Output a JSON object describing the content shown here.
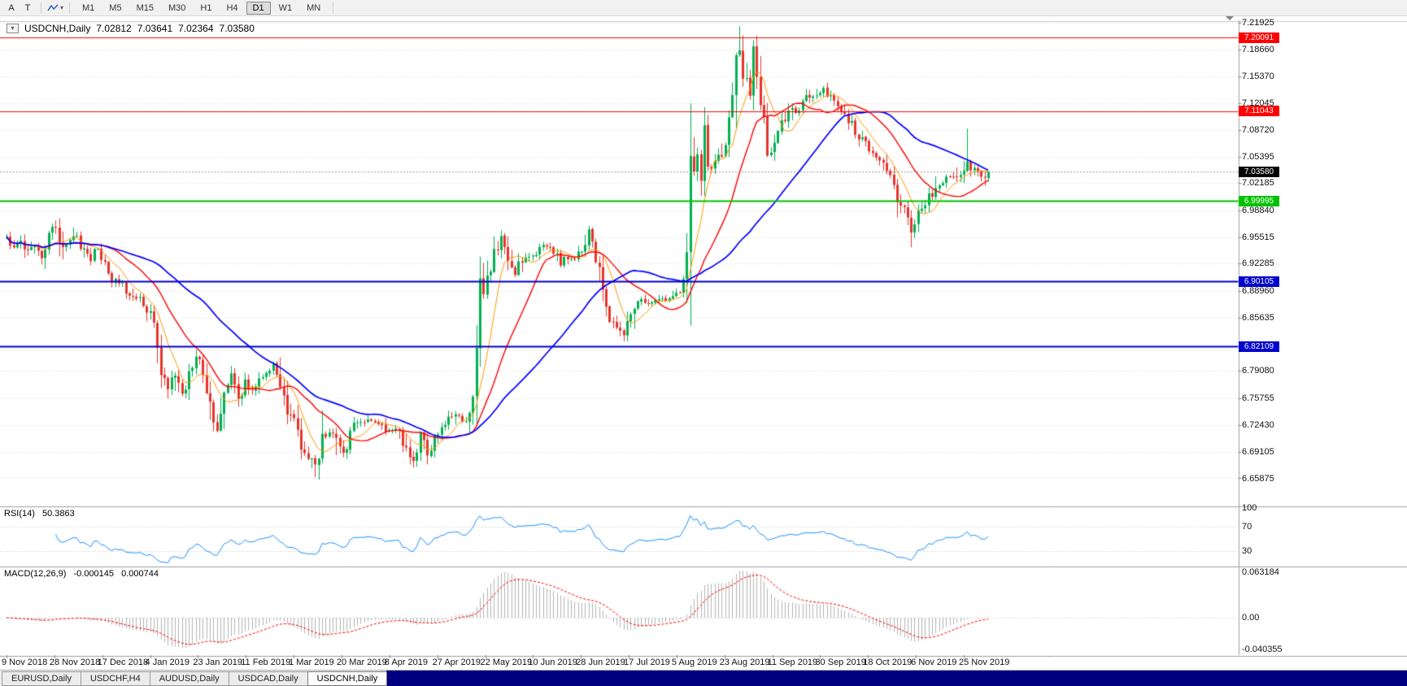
{
  "toolbar": {
    "buttons": [
      {
        "label": "A"
      },
      {
        "label": "T"
      }
    ],
    "cursor_button": {
      "caret_glyph": "▾"
    },
    "timeframes": [
      "M1",
      "M5",
      "M15",
      "M30",
      "H1",
      "H4",
      "D1",
      "W1",
      "MN"
    ],
    "active_timeframe": "D1"
  },
  "chart": {
    "title": {
      "symbol_period": "USDCNH,Daily",
      "open": "7.02812",
      "high": "7.03641",
      "low": "7.02364",
      "close": "7.03580"
    },
    "one_click_glyph": "▾",
    "colors": {
      "bull": "#00b050",
      "bear": "#e8342c",
      "ma_fast": "#ff9800",
      "ma_mid": "#ff0000",
      "ma_slow": "#0000ff",
      "grid": "#e2e2e2",
      "separator": "#a0a0a0",
      "rsi_line": "#1e90ff",
      "rsi_grid": "#c8c8c8",
      "macd_hist": "#b4b4b4",
      "macd_signal": "#ff0000",
      "current_line": "#9a9a9a",
      "current_badge": "#000000",
      "shift_marker": "#808080",
      "tabbar_fill": "#000080"
    },
    "price_axis_labels": [
      "7.21925",
      "7.18660",
      "7.15370",
      "7.12045",
      "7.08720",
      "7.05395",
      "7.02185",
      "6.98840",
      "6.95515",
      "6.92285",
      "6.88960",
      "6.85635",
      "6.79080",
      "6.75755",
      "6.72430",
      "6.69105",
      "6.65875"
    ],
    "levels": [
      {
        "value": 7.20091,
        "text": "7.20091",
        "color": "#ff0000",
        "width": 1
      },
      {
        "value": 7.11043,
        "text": "7.11043",
        "color": "#ff0000",
        "width": 1
      },
      {
        "value": 6.99995,
        "text": "6.99995",
        "color": "#00c300",
        "width": 2
      },
      {
        "value": 6.90105,
        "text": "6.90105",
        "color": "#0000cd",
        "width": 2
      },
      {
        "value": 6.82109,
        "text": "6.82109",
        "color": "#0000cd",
        "width": 2
      }
    ],
    "current_price": {
      "value": 7.0358,
      "text": "7.03580"
    },
    "date_axis": [
      "9 Nov 2018",
      "28 Nov 2018",
      "17 Dec 2018",
      "4 Jan 2019",
      "23 Jan 2019",
      "11 Feb 2019",
      "1 Mar 2019",
      "20 Mar 2019",
      "8 Apr 2019",
      "27 Apr 2019",
      "22 May 2019",
      "10 Jun 2019",
      "28 Jun 2019",
      "17 Jul 2019",
      "5 Aug 2019",
      "23 Aug 2019",
      "11 Sep 2019",
      "30 Sep 2019",
      "18 Oct 2019",
      "6 Nov 2019",
      "25 Nov 2019"
    ],
    "moving_averages": [
      {
        "period": 8,
        "color": "#ff9800",
        "width": 1
      },
      {
        "period": 20,
        "color": "#ff0000",
        "width": 1.4
      },
      {
        "period": 45,
        "color": "#0000ff",
        "width": 1.7
      }
    ],
    "series": {
      "count": 281,
      "seed": 11,
      "close_anchors": [
        [
          0,
          6.956
        ],
        [
          2,
          6.944
        ],
        [
          4,
          6.952
        ],
        [
          6,
          6.936
        ],
        [
          8,
          6.944
        ],
        [
          10,
          6.93
        ],
        [
          12,
          6.958
        ],
        [
          14,
          6.97
        ],
        [
          16,
          6.942
        ],
        [
          18,
          6.95
        ],
        [
          20,
          6.956
        ],
        [
          22,
          6.938
        ],
        [
          24,
          6.93
        ],
        [
          26,
          6.942
        ],
        [
          28,
          6.916
        ],
        [
          30,
          6.904
        ],
        [
          33,
          6.898
        ],
        [
          36,
          6.876
        ],
        [
          38,
          6.886
        ],
        [
          40,
          6.868
        ],
        [
          42,
          6.842
        ],
        [
          44,
          6.788
        ],
        [
          46,
          6.768
        ],
        [
          48,
          6.786
        ],
        [
          50,
          6.758
        ],
        [
          52,
          6.788
        ],
        [
          54,
          6.808
        ],
        [
          56,
          6.792
        ],
        [
          58,
          6.744
        ],
        [
          60,
          6.724
        ],
        [
          62,
          6.768
        ],
        [
          64,
          6.784
        ],
        [
          66,
          6.758
        ],
        [
          68,
          6.774
        ],
        [
          70,
          6.768
        ],
        [
          73,
          6.788
        ],
        [
          76,
          6.798
        ],
        [
          78,
          6.778
        ],
        [
          80,
          6.744
        ],
        [
          82,
          6.734
        ],
        [
          84,
          6.7
        ],
        [
          86,
          6.684
        ],
        [
          88,
          6.672
        ],
        [
          90,
          6.71
        ],
        [
          93,
          6.718
        ],
        [
          96,
          6.692
        ],
        [
          99,
          6.722
        ],
        [
          102,
          6.732
        ],
        [
          105,
          6.728
        ],
        [
          108,
          6.716
        ],
        [
          111,
          6.722
        ],
        [
          114,
          6.696
        ],
        [
          116,
          6.682
        ],
        [
          118,
          6.708
        ],
        [
          120,
          6.69
        ],
        [
          123,
          6.716
        ],
        [
          126,
          6.732
        ],
        [
          129,
          6.736
        ],
        [
          131,
          6.728
        ],
        [
          133,
          6.752
        ],
        [
          134,
          6.8
        ],
        [
          135,
          6.878
        ],
        [
          136,
          6.898
        ],
        [
          137,
          6.906
        ],
        [
          139,
          6.934
        ],
        [
          141,
          6.954
        ],
        [
          143,
          6.918
        ],
        [
          145,
          6.91
        ],
        [
          147,
          6.928
        ],
        [
          150,
          6.934
        ],
        [
          153,
          6.944
        ],
        [
          156,
          6.938
        ],
        [
          158,
          6.924
        ],
        [
          160,
          6.93
        ],
        [
          162,
          6.93
        ],
        [
          164,
          6.938
        ],
        [
          166,
          6.958
        ],
        [
          168,
          6.932
        ],
        [
          170,
          6.878
        ],
        [
          172,
          6.858
        ],
        [
          174,
          6.848
        ],
        [
          176,
          6.836
        ],
        [
          178,
          6.862
        ],
        [
          180,
          6.878
        ],
        [
          183,
          6.876
        ],
        [
          186,
          6.88
        ],
        [
          189,
          6.878
        ],
        [
          191,
          6.884
        ],
        [
          193,
          6.898
        ],
        [
          194,
          6.936
        ],
        [
          195,
          7.018
        ],
        [
          196,
          7.048
        ],
        [
          197,
          7.058
        ],
        [
          198,
          7.038
        ],
        [
          199,
          7.086
        ],
        [
          200,
          7.058
        ],
        [
          201,
          7.044
        ],
        [
          203,
          7.054
        ],
        [
          205,
          7.064
        ],
        [
          207,
          7.118
        ],
        [
          208,
          7.172
        ],
        [
          209,
          7.188
        ],
        [
          210,
          7.162
        ],
        [
          211,
          7.14
        ],
        [
          212,
          7.128
        ],
        [
          213,
          7.168
        ],
        [
          214,
          7.148
        ],
        [
          215,
          7.118
        ],
        [
          216,
          7.098
        ],
        [
          217,
          7.072
        ],
        [
          218,
          7.064
        ],
        [
          220,
          7.082
        ],
        [
          222,
          7.102
        ],
        [
          224,
          7.114
        ],
        [
          226,
          7.108
        ],
        [
          228,
          7.124
        ],
        [
          230,
          7.128
        ],
        [
          232,
          7.138
        ],
        [
          234,
          7.132
        ],
        [
          236,
          7.118
        ],
        [
          238,
          7.112
        ],
        [
          240,
          7.1
        ],
        [
          242,
          7.086
        ],
        [
          244,
          7.074
        ],
        [
          246,
          7.064
        ],
        [
          248,
          7.056
        ],
        [
          250,
          7.044
        ],
        [
          252,
          7.024
        ],
        [
          254,
          7.002
        ],
        [
          256,
          6.986
        ],
        [
          258,
          6.966
        ],
        [
          260,
          6.988
        ],
        [
          262,
          7.0
        ],
        [
          264,
          7.01
        ],
        [
          266,
          7.02
        ],
        [
          268,
          7.026
        ],
        [
          270,
          7.03
        ],
        [
          272,
          7.034
        ],
        [
          274,
          7.05
        ],
        [
          275,
          7.042
        ],
        [
          276,
          7.036
        ],
        [
          278,
          7.03
        ],
        [
          280,
          7.0358
        ]
      ],
      "high_marks": [
        [
          209,
          7.1965
        ],
        [
          213,
          7.186
        ],
        [
          274,
          7.089
        ],
        [
          14,
          6.976
        ]
      ],
      "low_marks": [
        [
          88,
          6.66
        ],
        [
          116,
          6.672
        ],
        [
          60,
          6.716
        ],
        [
          258,
          6.956
        ]
      ],
      "last_candle": [
        7.02812,
        7.03641,
        7.02364,
        7.0358
      ]
    }
  },
  "rsi": {
    "title": "RSI(14)",
    "value": "50.3863",
    "period": 14,
    "scale_labels": [
      "100",
      "70",
      "30"
    ]
  },
  "macd": {
    "title": "MACD(12,26,9)",
    "value_main": "-0.000145",
    "value_signal": "0.000744",
    "fast": 12,
    "slow": 26,
    "signal": 9,
    "scale_labels": [
      "0.063184",
      "0.00",
      "-0.040355"
    ]
  },
  "tabs": {
    "items": [
      "EURUSD,Daily",
      "USDCHF,H4",
      "AUDUSD,Daily",
      "USDCAD,Daily",
      "USDCNH,Daily"
    ],
    "active": "USDCNH,Daily"
  }
}
